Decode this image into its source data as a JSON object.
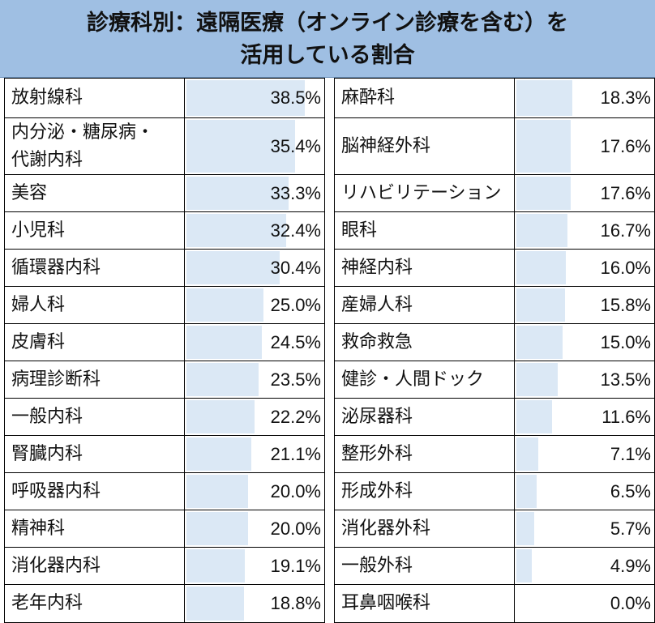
{
  "title": {
    "line1": "診療科別：遠隔医療（オンライン診療を含む）を",
    "line2": "活用している割合"
  },
  "colors": {
    "title_bg": "#9fbfe3",
    "bar": "#dbe8f5",
    "border": "#000000"
  },
  "chart_data": {
    "type": "bar",
    "orientation": "horizontal",
    "unit": "%",
    "xlim": [
      0,
      38.5
    ],
    "grid": false,
    "tables": [
      {
        "categories": [
          "放射線科",
          "内分泌・糖尿病・\n代謝内科",
          "美容",
          "小児科",
          "循環器内科",
          "婦人科",
          "皮膚科",
          "病理診断科",
          "一般内科",
          "腎臓内科",
          "呼吸器内科",
          "精神科",
          "消化器内科",
          "老年内科"
        ],
        "values": [
          38.5,
          35.4,
          33.3,
          32.4,
          30.4,
          25.0,
          24.5,
          23.5,
          22.2,
          21.1,
          20.0,
          20.0,
          19.1,
          18.8
        ],
        "labels": [
          "38.5%",
          "35.4%",
          "33.3%",
          "32.4%",
          "30.4%",
          "25.0%",
          "24.5%",
          "23.5%",
          "22.2%",
          "21.1%",
          "20.0%",
          "20.0%",
          "19.1%",
          "18.8%"
        ]
      },
      {
        "categories": [
          "麻酔科",
          "脳神経外科",
          "リハビリテーション",
          "眼科",
          "神経内科",
          "産婦人科",
          "救命救急",
          "健診・人間ドック",
          "泌尿器科",
          "整形外科",
          "形成外科",
          "消化器外科",
          "一般外科",
          "耳鼻咽喉科"
        ],
        "values": [
          18.3,
          17.6,
          17.6,
          16.7,
          16.0,
          15.8,
          15.0,
          13.5,
          11.6,
          7.1,
          6.5,
          5.7,
          4.9,
          0.0
        ],
        "labels": [
          "18.3%",
          "17.6%",
          "17.6%",
          "16.7%",
          "16.0%",
          "15.8%",
          "15.0%",
          "13.5%",
          "11.6%",
          "7.1%",
          "6.5%",
          "5.7%",
          "4.9%",
          "0.0%"
        ]
      }
    ]
  }
}
